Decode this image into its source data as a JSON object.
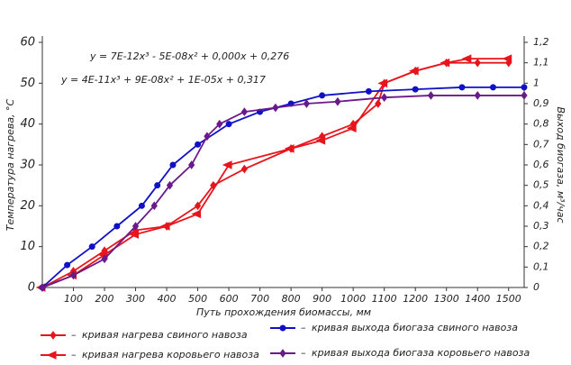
{
  "chart_data": {
    "type": "line",
    "annotations": [
      "y = 7E-12x³ - 5E-08x² + 0,000x + 0,276",
      "y =  4E-11x³ + 9E-08x² + 1E-05x + 0,317"
    ],
    "xlabel": "Путь прохождения биомассы, мм",
    "ylabel": "Температура нагрева, °С",
    "y2label": "Выход биогаза, м³/час",
    "xlim": [
      0,
      1550
    ],
    "xticks": [
      100,
      200,
      300,
      400,
      500,
      600,
      700,
      800,
      900,
      1000,
      1100,
      1200,
      1300,
      1400,
      1500
    ],
    "ylim": [
      0,
      60
    ],
    "yticks": [
      0,
      10,
      20,
      30,
      40,
      50,
      60
    ],
    "y2lim": [
      0,
      1.2
    ],
    "y2ticks": [
      {
        "value": 0,
        "label": "0"
      },
      {
        "value": 0.1,
        "label": "0,1"
      },
      {
        "value": 0.2,
        "label": "0,2"
      },
      {
        "value": 0.3,
        "label": "0,3"
      },
      {
        "value": 0.4,
        "label": "0,4"
      },
      {
        "value": 0.5,
        "label": "0,5"
      },
      {
        "value": 0.6,
        "label": "0,6"
      },
      {
        "value": 0.7,
        "label": "0,7"
      },
      {
        "value": 0.8,
        "label": "0,8"
      },
      {
        "value": 0.9,
        "label": "0,9"
      },
      {
        "value": 1,
        "label": "1"
      },
      {
        "value": 1.1,
        "label": "1,1"
      },
      {
        "value": 1.2,
        "label": "1,2"
      }
    ],
    "grid": false,
    "series": [
      {
        "name": "кривая нагрева свиного навоза",
        "color": "#e8141c",
        "marker": "diamond",
        "axis": "y",
        "x": [
          0,
          100,
          200,
          300,
          400,
          500,
          550,
          650,
          800,
          900,
          1000,
          1080,
          1100,
          1200,
          1300,
          1400,
          1500
        ],
        "values": [
          0,
          4,
          9,
          14,
          15,
          20,
          25,
          29,
          34,
          37,
          40,
          45,
          50,
          53,
          55,
          55,
          55
        ]
      },
      {
        "name": "кривая нагрева коровьего навоза",
        "color": "#e8141c",
        "marker": "triangle",
        "axis": "y",
        "x": [
          0,
          100,
          200,
          300,
          400,
          500,
          600,
          800,
          900,
          1000,
          1100,
          1200,
          1300,
          1370,
          1500
        ],
        "values": [
          0,
          3,
          8,
          13,
          15,
          18,
          30,
          34,
          36,
          39,
          50,
          53,
          55,
          56,
          56
        ]
      },
      {
        "name": "кривая выхода биогаза свиного навоза",
        "color": "#1010c8",
        "marker": "circle",
        "axis": "y2",
        "x": [
          0,
          80,
          160,
          240,
          320,
          370,
          420,
          500,
          600,
          700,
          800,
          900,
          1050,
          1200,
          1350,
          1450,
          1550
        ],
        "values": [
          0,
          0.11,
          0.2,
          0.3,
          0.4,
          0.5,
          0.6,
          0.7,
          0.8,
          0.86,
          0.9,
          0.94,
          0.96,
          0.97,
          0.98,
          0.98,
          0.98
        ]
      },
      {
        "name": "кривая выхода биогаза коровьего навоза",
        "color": "#6a1a8a",
        "marker": "diamond",
        "axis": "y2",
        "x": [
          0,
          100,
          200,
          300,
          360,
          410,
          480,
          530,
          570,
          650,
          750,
          850,
          950,
          1100,
          1250,
          1400,
          1550
        ],
        "values": [
          0,
          0.06,
          0.14,
          0.3,
          0.4,
          0.5,
          0.6,
          0.74,
          0.8,
          0.86,
          0.88,
          0.9,
          0.91,
          0.93,
          0.94,
          0.94,
          0.94
        ]
      }
    ]
  }
}
